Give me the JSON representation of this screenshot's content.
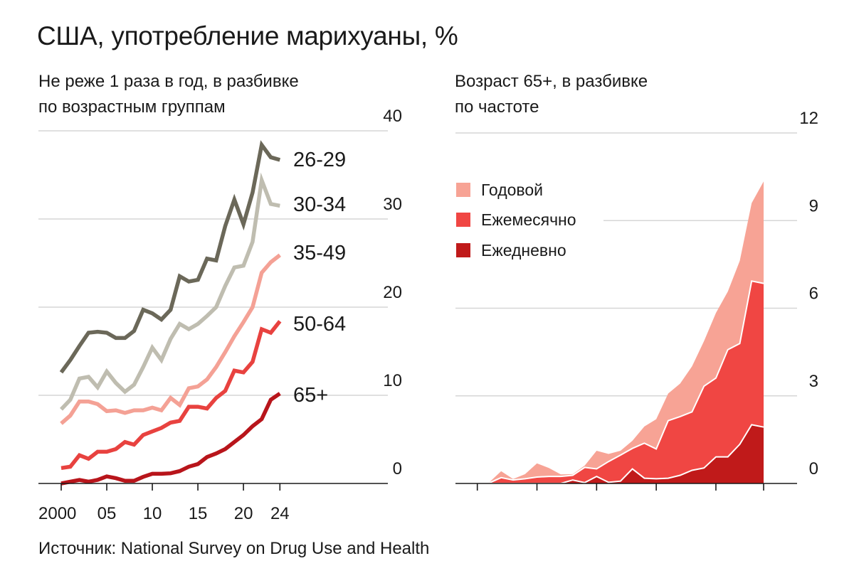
{
  "header": {
    "title": "США, употребление марихуаны, %"
  },
  "footer": {
    "source": "Источник: National Survey on Drug Use and Health"
  },
  "chart_data": [
    {
      "id": "left",
      "type": "line",
      "title": "Не реже 1 раза в год, в разбивке по возрастным группам",
      "subtitle_lines": [
        "Не реже 1 раза в год, в разбивке",
        "по возрастным группам"
      ],
      "xlabel": "",
      "ylabel": "",
      "x": [
        2000,
        2001,
        2002,
        2003,
        2004,
        2005,
        2006,
        2007,
        2008,
        2009,
        2010,
        2011,
        2012,
        2013,
        2014,
        2015,
        2016,
        2017,
        2018,
        2019,
        2020,
        2021,
        2022,
        2023,
        2024
      ],
      "xlim": [
        2000,
        2024
      ],
      "ylim": [
        0,
        40
      ],
      "yticks": [
        0,
        10,
        20,
        30,
        40
      ],
      "ytick_labels": [
        "0",
        "10",
        "20",
        "30",
        "40"
      ],
      "xticks": [
        2000,
        2005,
        2010,
        2015,
        2020,
        2024
      ],
      "xtick_labels": [
        "2000",
        "05",
        "10",
        "15",
        "20",
        "24"
      ],
      "grid": true,
      "legend": "direct-labels-right",
      "series": [
        {
          "name": "26-29",
          "color": "#6b6859",
          "values": [
            12.6,
            14.0,
            15.6,
            17.1,
            17.2,
            17.1,
            16.5,
            16.5,
            17.3,
            19.7,
            19.3,
            18.6,
            19.7,
            23.5,
            22.9,
            23.1,
            25.5,
            25.3,
            29.2,
            32.2,
            29.4,
            33.0,
            38.4,
            37.0,
            36.7
          ]
        },
        {
          "name": "30-34",
          "color": "#bfbdb0",
          "values": [
            8.4,
            9.5,
            11.9,
            12.1,
            10.9,
            12.7,
            11.4,
            10.4,
            11.2,
            13.2,
            15.4,
            14.0,
            16.4,
            18.1,
            17.5,
            18.1,
            19.0,
            20.0,
            22.4,
            24.5,
            24.7,
            27.4,
            34.4,
            31.7,
            31.5
          ]
        },
        {
          "name": "35-49",
          "color": "#f4a195",
          "values": [
            6.8,
            7.7,
            9.3,
            9.3,
            9.0,
            8.2,
            8.3,
            8.0,
            8.3,
            8.3,
            8.6,
            8.3,
            9.7,
            8.9,
            10.8,
            11.0,
            11.8,
            13.2,
            14.9,
            16.7,
            18.3,
            20.0,
            23.9,
            25.1,
            25.9
          ]
        },
        {
          "name": "50-64",
          "color": "#e8423f",
          "values": [
            1.75,
            1.9,
            3.2,
            2.8,
            3.6,
            3.6,
            3.9,
            4.7,
            4.4,
            5.5,
            5.9,
            6.3,
            6.9,
            7.1,
            8.7,
            8.7,
            8.5,
            9.7,
            10.5,
            12.8,
            12.6,
            13.8,
            17.5,
            17.1,
            18.4
          ]
        },
        {
          "name": "65+",
          "color": "#b8151b",
          "values": [
            0.0,
            0.2,
            0.4,
            0.2,
            0.4,
            0.8,
            0.6,
            0.3,
            0.3,
            0.75,
            1.1,
            1.1,
            1.15,
            1.4,
            1.9,
            2.2,
            3.0,
            3.4,
            3.9,
            4.7,
            5.5,
            6.5,
            7.3,
            9.5,
            10.2
          ]
        }
      ]
    },
    {
      "id": "right",
      "type": "area",
      "stacked": true,
      "title": "Возраст 65+, в разбивке по частоте",
      "subtitle_lines": [
        "Возраст 65+, в разбивке",
        "по частоте"
      ],
      "xlabel": "",
      "ylabel": "",
      "x": [
        2000,
        2001,
        2002,
        2003,
        2004,
        2005,
        2006,
        2007,
        2008,
        2009,
        2010,
        2011,
        2012,
        2013,
        2014,
        2015,
        2016,
        2017,
        2018,
        2019,
        2020,
        2021,
        2022,
        2023,
        2024
      ],
      "xlim": [
        2000,
        2024
      ],
      "ylim": [
        0,
        12
      ],
      "yticks": [
        0,
        3,
        6,
        9,
        12
      ],
      "ytick_labels": [
        "0",
        "3",
        "6",
        "9",
        "12"
      ],
      "xticks": [
        2000,
        2005,
        2010,
        2015,
        2020,
        2024
      ],
      "xtick_labels": [
        "",
        "",
        "",
        "",
        "",
        ""
      ],
      "grid": true,
      "legend": "top-left",
      "series_order_bottom_to_top": [
        "Ежедневно",
        "Ежемесячно",
        "Годовой"
      ],
      "series": [
        {
          "name": "Годовой",
          "color": "#f7a395",
          "cumulative_top": [
            0.0,
            0.04,
            0.42,
            0.15,
            0.32,
            0.69,
            0.53,
            0.31,
            0.32,
            0.61,
            1.12,
            1.01,
            1.12,
            1.46,
            1.95,
            2.2,
            3.08,
            3.42,
            4.01,
            4.87,
            5.84,
            6.57,
            7.62,
            9.6,
            10.34
          ]
        },
        {
          "name": "Ежемесячно",
          "color": "#f04643",
          "cumulative_top": [
            0.0,
            0.02,
            0.2,
            0.12,
            0.16,
            0.22,
            0.24,
            0.24,
            0.28,
            0.55,
            0.5,
            0.75,
            0.97,
            1.2,
            1.38,
            1.18,
            2.15,
            2.29,
            2.45,
            3.33,
            3.61,
            4.58,
            4.79,
            6.93,
            6.85
          ]
        },
        {
          "name": "Ежедневно",
          "color": "#c01a1a",
          "cumulative_top": [
            0.0,
            0.0,
            0.0,
            0.0,
            0.0,
            0.0,
            0.0,
            0.0,
            0.12,
            0.03,
            0.24,
            0.04,
            0.08,
            0.5,
            0.18,
            0.16,
            0.18,
            0.28,
            0.45,
            0.53,
            0.91,
            0.91,
            1.34,
            2.01,
            1.93
          ]
        }
      ]
    }
  ]
}
